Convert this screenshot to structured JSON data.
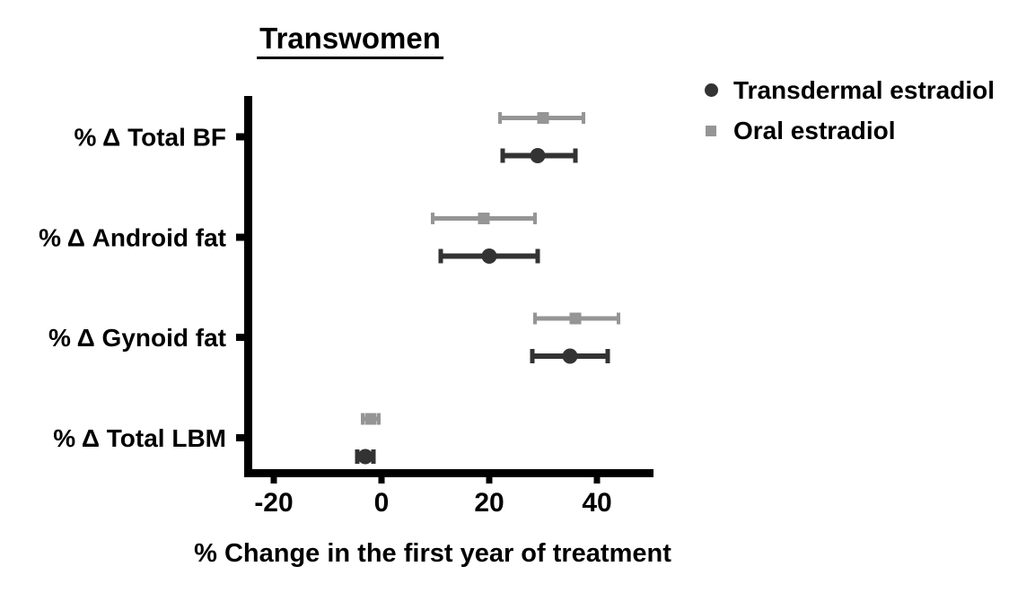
{
  "title": "Transwomen",
  "xlabel": "% Change in the first year of treatment",
  "colors": {
    "transdermal": "#333333",
    "oral": "#959595",
    "axis": "#000000",
    "text": "#000000",
    "background": "#ffffff"
  },
  "legend": {
    "position": "top-right",
    "items": [
      {
        "label": "Transdermal estradiol",
        "marker": "circle-marker-icon",
        "color": "#333333"
      },
      {
        "label": "Oral estradiol",
        "marker": "square-marker-icon",
        "color": "#959595"
      }
    ]
  },
  "chart_data": {
    "type": "scatter",
    "subtype": "horizontal-dot-plot-with-error-bars",
    "title": "Transwomen",
    "xlabel": "% Change in the first year of treatment",
    "ylabel": "",
    "grid": false,
    "legend_position": "top-right",
    "categories": [
      "% Δ Total BF",
      "% Δ Android fat",
      "% Δ Gynoid fat",
      "% Δ Total LBM"
    ],
    "x_ticks": [
      -20,
      0,
      20,
      40
    ],
    "xlim": [
      -25.5,
      50.5
    ],
    "series": [
      {
        "name": "Transdermal estradiol",
        "marker": "circle",
        "color": "#333333",
        "row_position": "below-category-center",
        "points": [
          {
            "category": "% Δ Total BF",
            "mean": 29,
            "lo": 22.5,
            "hi": 36
          },
          {
            "category": "% Δ Android fat",
            "mean": 20,
            "lo": 11,
            "hi": 29
          },
          {
            "category": "% Δ Gynoid fat",
            "mean": 35,
            "lo": 28,
            "hi": 42
          },
          {
            "category": "% Δ Total LBM",
            "mean": -3,
            "lo": -4.5,
            "hi": -1.5
          }
        ]
      },
      {
        "name": "Oral estradiol",
        "marker": "square",
        "color": "#959595",
        "row_position": "above-category-center",
        "points": [
          {
            "category": "% Δ Total BF",
            "mean": 30,
            "lo": 22,
            "hi": 37.5
          },
          {
            "category": "% Δ Android fat",
            "mean": 19,
            "lo": 9.5,
            "hi": 28.5
          },
          {
            "category": "% Δ Gynoid fat",
            "mean": 36,
            "lo": 28.5,
            "hi": 44
          },
          {
            "category": "% Δ Total LBM",
            "mean": -2,
            "lo": -3.5,
            "hi": -0.5
          }
        ]
      }
    ]
  }
}
